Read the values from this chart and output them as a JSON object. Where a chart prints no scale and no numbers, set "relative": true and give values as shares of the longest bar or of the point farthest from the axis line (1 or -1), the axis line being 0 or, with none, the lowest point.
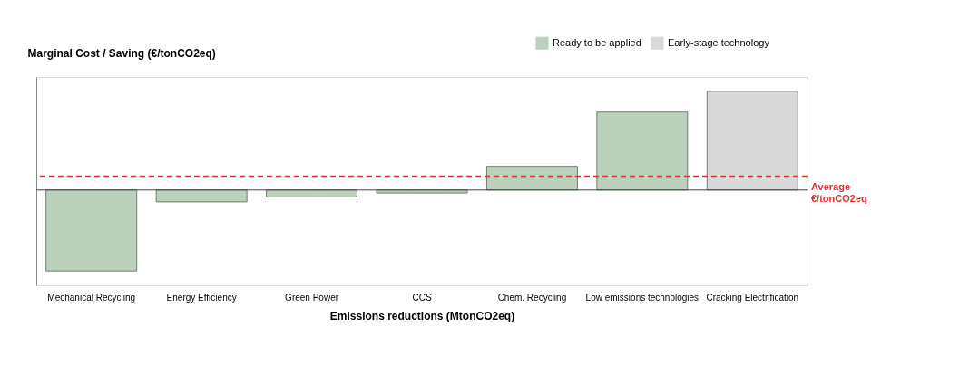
{
  "chart_data": {
    "type": "bar",
    "relative": true,
    "xlabel": "Emissions reductions (MtonCO2eq)",
    "ylabel": "Marginal Cost / Saving (€/tonCO2eq)",
    "categories": [
      "Mechanical Recycling",
      "Energy Efficiency",
      "Green Power",
      "CCS",
      "Chem. Recycling",
      "Low emissions technologies",
      "Cracking Electrification"
    ],
    "series": [
      {
        "name": "Ready to be applied",
        "color": "#bcd1bb",
        "values": [
          -0.82,
          -0.12,
          -0.07,
          -0.03,
          0.24,
          0.79,
          null
        ]
      },
      {
        "name": "Early-stage technology",
        "color": "#d9d9d9",
        "values": [
          null,
          null,
          null,
          null,
          null,
          null,
          1
        ]
      }
    ],
    "ref_lines": [
      {
        "axis": "y",
        "value": 0.14,
        "label": "Average €/tonCO2eq",
        "color": "#e03030",
        "line_style": "dashed"
      }
    ],
    "legend": "top right",
    "grid": false
  }
}
